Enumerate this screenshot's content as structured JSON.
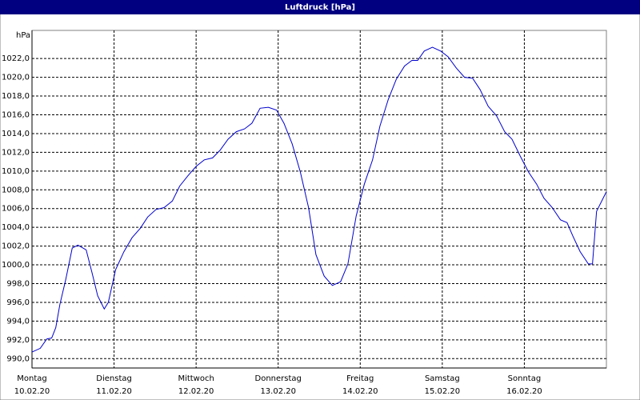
{
  "chart_data": {
    "type": "line",
    "title": "Luftdruck [hPa]",
    "y_label": "hPa",
    "xlim": [
      0,
      7
    ],
    "ylim": [
      989,
      1025
    ],
    "grid": true,
    "xticks": [
      {
        "value": 0,
        "label": "Montag",
        "date": "10.02.20"
      },
      {
        "value": 1,
        "label": "Dienstag",
        "date": "11.02.20"
      },
      {
        "value": 2,
        "label": "Mittwoch",
        "date": "12.02.20"
      },
      {
        "value": 3,
        "label": "Donnerstag",
        "date": "13.02.20"
      },
      {
        "value": 4,
        "label": "Freitag",
        "date": "14.02.20"
      },
      {
        "value": 5,
        "label": "Samstag",
        "date": "15.02.20"
      },
      {
        "value": 6,
        "label": "Sonntag",
        "date": "16.02.20"
      }
    ],
    "yticks": [
      {
        "value": 990,
        "label": "990,0"
      },
      {
        "value": 992,
        "label": "992,0"
      },
      {
        "value": 994,
        "label": "994,0"
      },
      {
        "value": 996,
        "label": "996,0"
      },
      {
        "value": 998,
        "label": "998,0"
      },
      {
        "value": 1000,
        "label": "1000,0"
      },
      {
        "value": 1002,
        "label": "1002,0"
      },
      {
        "value": 1004,
        "label": "1004,0"
      },
      {
        "value": 1006,
        "label": "1006,0"
      },
      {
        "value": 1008,
        "label": "1008,0"
      },
      {
        "value": 1010,
        "label": "1010,0"
      },
      {
        "value": 1012,
        "label": "1012,0"
      },
      {
        "value": 1014,
        "label": "1014,0"
      },
      {
        "value": 1016,
        "label": "1016,0"
      },
      {
        "value": 1018,
        "label": "1018,0"
      },
      {
        "value": 1020,
        "label": "1020,0"
      },
      {
        "value": 1022,
        "label": "1022,0"
      }
    ],
    "series": [
      {
        "name": "Luftdruck",
        "color": "#0000cc",
        "x": [
          0,
          0.1,
          0.18,
          0.24,
          0.29,
          0.34,
          0.41,
          0.49,
          0.56,
          0.66,
          0.73,
          0.8,
          0.88,
          0.93,
          1.02,
          1.12,
          1.22,
          1.32,
          1.41,
          1.51,
          1.61,
          1.71,
          1.8,
          1.9,
          2.0,
          2.1,
          2.2,
          2.29,
          2.39,
          2.49,
          2.59,
          2.68,
          2.78,
          2.88,
          2.98,
          3.07,
          3.17,
          3.27,
          3.37,
          3.46,
          3.56,
          3.66,
          3.76,
          3.85,
          3.95,
          4.05,
          4.15,
          4.24,
          4.34,
          4.44,
          4.54,
          4.63,
          4.7,
          4.78,
          4.88,
          4.98,
          5.07,
          5.17,
          5.27,
          5.37,
          5.46,
          5.56,
          5.66,
          5.76,
          5.85,
          5.95,
          6.05,
          6.15,
          6.24,
          6.34,
          6.44,
          6.52,
          6.59,
          6.68,
          6.78,
          6.83,
          6.88,
          7.0
        ],
        "values": [
          990.7,
          991.1,
          992.1,
          992.2,
          993.3,
          995.8,
          998.4,
          1001.8,
          1002.1,
          1001.6,
          999.2,
          996.7,
          995.3,
          996.0,
          999.5,
          1001.4,
          1002.9,
          1003.9,
          1005.1,
          1005.9,
          1006.1,
          1006.8,
          1008.4,
          1009.5,
          1010.5,
          1011.2,
          1011.4,
          1012.2,
          1013.4,
          1014.2,
          1014.5,
          1015.1,
          1016.7,
          1016.8,
          1016.5,
          1015.1,
          1012.9,
          1009.9,
          1006.1,
          1001.1,
          998.8,
          997.8,
          998.2,
          1000.1,
          1005.2,
          1008.6,
          1011.2,
          1014.8,
          1017.6,
          1019.8,
          1021.2,
          1021.8,
          1021.8,
          1022.8,
          1023.2,
          1022.8,
          1022.2,
          1021.0,
          1020.0,
          1019.9,
          1018.7,
          1016.9,
          1015.9,
          1014.2,
          1013.4,
          1011.6,
          1009.9,
          1008.6,
          1007.1,
          1006.1,
          1004.8,
          1004.5,
          1003.1,
          1001.4,
          1000.1,
          1000.1,
          1005.7,
          1007.8
        ]
      }
    ]
  }
}
